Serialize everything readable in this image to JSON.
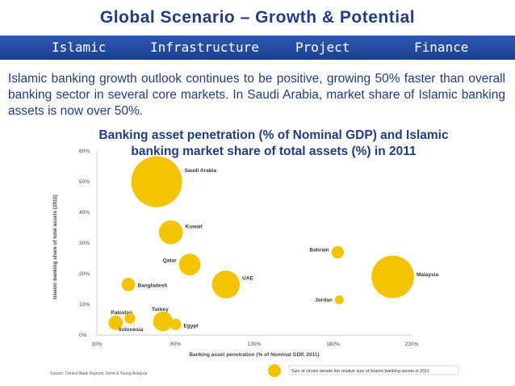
{
  "header": {
    "title": "Global Scenario – Growth & Potential",
    "nav": [
      "Islamic",
      "Infrastructure",
      "Project",
      "Finance"
    ]
  },
  "intro": "Islamic banking growth outlook continues to be positive, growing 50% faster than overall banking sector in several core markets. In Saudi Arabia, market share of Islamic banking assets is now over 50%.",
  "colors": {
    "bubble": "#f5c400",
    "axis": "#bfbfbf",
    "nav_bg": "#2450a8",
    "title": "#1f3c88"
  },
  "source": "Source: Central Bank Reports; Elmd & Young Analysis",
  "chart_data": {
    "type": "scatter",
    "title_line1": "Banking asset penetration (% of Nominal GDP) and Islamic",
    "title_line2": "banking market share of total assets (%) in 2011",
    "xlabel": "Banking asset penetration (% of Nominal GDP, 2011)",
    "ylabel": "Islamic banking share of total assets (2011)",
    "xlim": [
      30,
      230
    ],
    "ylim": [
      0,
      60
    ],
    "x_ticks": [
      "30%",
      "80%",
      "130%",
      "180%",
      "230%"
    ],
    "y_ticks": [
      "0%",
      "10%",
      "20%",
      "30%",
      "40%",
      "50%",
      "60%"
    ],
    "legend": "Size of circles denote the relative size of Islamic banking assets in 2011",
    "points": [
      {
        "label": "Saudi Arabia",
        "x": 68,
        "y": 50,
        "size": 10
      },
      {
        "label": "Kuwait",
        "x": 77,
        "y": 33.5,
        "size": 2.2
      },
      {
        "label": "Qatar",
        "x": 89,
        "y": 23,
        "size": 1.8
      },
      {
        "label": "UAE",
        "x": 112,
        "y": 16.5,
        "size": 3
      },
      {
        "label": "Bahrain",
        "x": 183,
        "y": 27,
        "size": 0.6
      },
      {
        "label": "Malaysia",
        "x": 218,
        "y": 19,
        "size": 7
      },
      {
        "label": "Jordan",
        "x": 184,
        "y": 11.5,
        "size": 0.3
      },
      {
        "label": "Bangladesh",
        "x": 50,
        "y": 16.5,
        "size": 0.7
      },
      {
        "label": "Pakistan",
        "x": 42,
        "y": 4,
        "size": 0.8
      },
      {
        "label": "Indonesia",
        "x": 51,
        "y": 5.5,
        "size": 0.45
      },
      {
        "label": "Turkey",
        "x": 72,
        "y": 4.5,
        "size": 1.5
      },
      {
        "label": "Egypt",
        "x": 80,
        "y": 3.5,
        "size": 0.5
      }
    ]
  }
}
